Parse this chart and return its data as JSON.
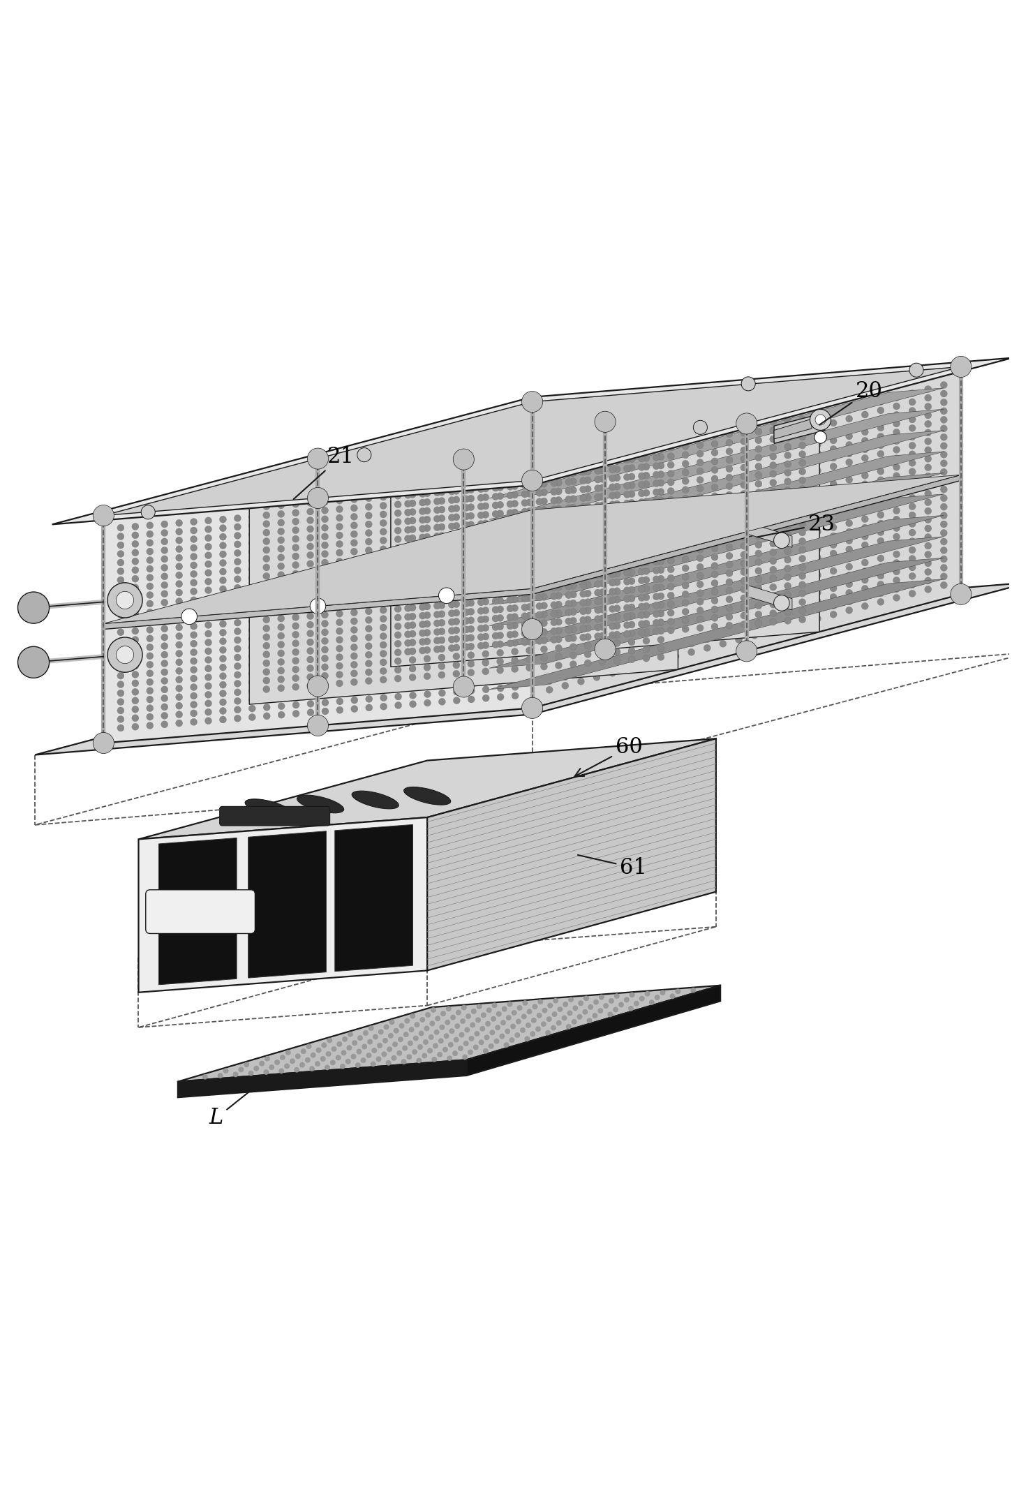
{
  "background": "#ffffff",
  "lc": "#1a1a1a",
  "fig_w": 14.5,
  "fig_h": 21.29,
  "dpi": 100,
  "label_fs": 22
}
